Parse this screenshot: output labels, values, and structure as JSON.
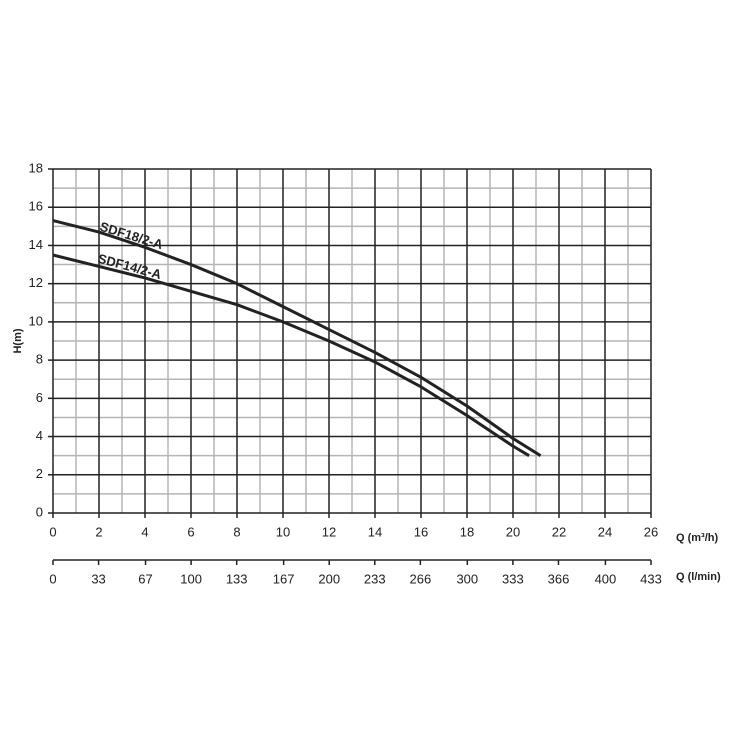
{
  "chart_data": {
    "type": "line",
    "ylabel": "H(m)",
    "xlabel": "Q (m³/h)",
    "x2label": "Q (l/min)",
    "xlim": [
      0,
      26
    ],
    "xticks": [
      0,
      2,
      4,
      6,
      8,
      10,
      12,
      14,
      16,
      18,
      20,
      22,
      24,
      26
    ],
    "x2lim": [
      0,
      433
    ],
    "x2ticks": [
      0,
      33,
      67,
      100,
      133,
      167,
      200,
      233,
      266,
      300,
      333,
      366,
      400,
      433
    ],
    "ylim": [
      0,
      18
    ],
    "yticks": [
      0,
      2,
      4,
      6,
      8,
      10,
      12,
      14,
      16,
      18
    ],
    "grid": true,
    "minor_grid": true,
    "series": [
      {
        "name": "SDF18/2-A",
        "color": "#222222",
        "x": [
          0,
          2,
          4,
          6,
          8,
          10,
          12,
          14,
          16,
          18,
          20,
          21.2
        ],
        "values": [
          15.3,
          14.7,
          13.9,
          13.0,
          12.0,
          10.8,
          9.6,
          8.4,
          7.1,
          5.6,
          3.9,
          3.0
        ]
      },
      {
        "name": "SDF14/2-A",
        "color": "#222222",
        "x": [
          0,
          2,
          4,
          6,
          8,
          10,
          12,
          14,
          16,
          18,
          20,
          20.7
        ],
        "values": [
          13.5,
          12.9,
          12.3,
          11.6,
          10.9,
          10.0,
          9.0,
          7.9,
          6.6,
          5.1,
          3.5,
          3.0
        ]
      }
    ]
  }
}
